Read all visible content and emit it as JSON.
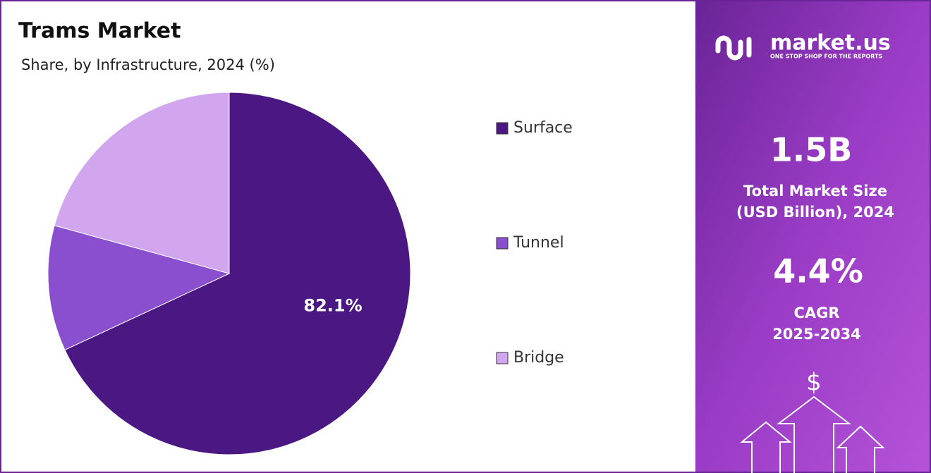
{
  "chart_data": {
    "type": "pie",
    "title": "Trams Market",
    "subtitle": "Share, by Infrastructure, 2024 (%)",
    "categories": [
      "Surface",
      "Tunnel",
      "Bridge"
    ],
    "values": [
      82.1,
      13.5,
      25
    ],
    "value_labels": [
      "82.1%",
      null,
      null
    ],
    "colors": [
      "#4b1782",
      "#8a4fcf",
      "#d2a6ee"
    ]
  },
  "sidebar": {
    "brand": "market.us",
    "tagline": "ONE STOP SHOP FOR THE REPORTS",
    "market_size": "1.5B",
    "market_size_label": [
      "Total Market Size",
      "(USD Billion), 2024"
    ],
    "cagr": "4.4%",
    "cagr_label": [
      "CAGR",
      "2025-2034"
    ],
    "icon": "$"
  }
}
